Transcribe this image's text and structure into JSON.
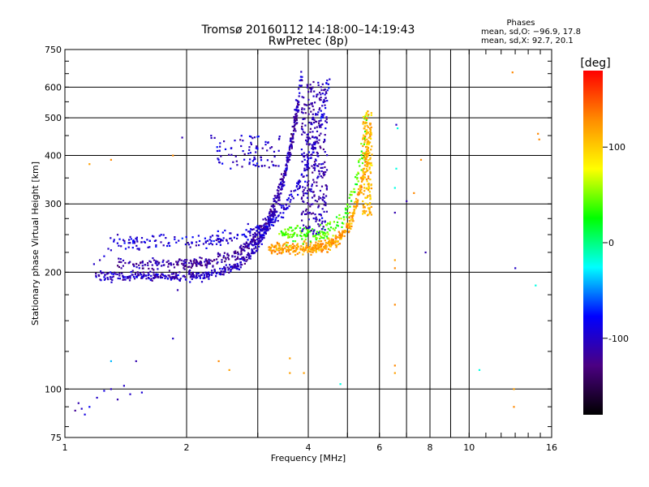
{
  "chart_data": {
    "type": "scatter",
    "title": "Tromsø 20160112 14:18:00–14:19:43",
    "subtitle": "RwPretec (8p)",
    "xlabel": "Frequency [MHz]",
    "ylabel": "Stationary phase Virtual Height [km]",
    "x_scale": "log",
    "y_scale": "log",
    "xlim": [
      1,
      16
    ],
    "ylim": [
      75,
      750
    ],
    "x_ticks": [
      1,
      2,
      4,
      6,
      8,
      10,
      16
    ],
    "y_ticks": [
      75,
      100,
      200,
      300,
      400,
      500,
      600,
      750
    ],
    "grid": true,
    "stats": {
      "heading": "Phases",
      "line_o": "mean, sd,O: −96.9, 17.8",
      "line_x": "mean, sd,X:  92.7, 20.1"
    },
    "colorbar": {
      "label": "[deg]",
      "range": [
        -180,
        180
      ],
      "ticks": [
        100,
        0,
        -100
      ],
      "colors": [
        "#000000",
        "#4b0082",
        "#0000ff",
        "#00ffff",
        "#00ff00",
        "#ffff00",
        "#ff8c00",
        "#ff0000"
      ]
    },
    "points": [
      [
        1.1,
        89,
        -100
      ],
      [
        1.12,
        86,
        -90
      ],
      [
        1.08,
        92,
        -110
      ],
      [
        1.15,
        90,
        -80
      ],
      [
        1.06,
        88,
        -120
      ],
      [
        1.2,
        95,
        -100
      ],
      [
        1.25,
        99,
        -90
      ],
      [
        1.35,
        94,
        -110
      ],
      [
        1.45,
        97,
        -100
      ],
      [
        1.55,
        98,
        -95
      ],
      [
        1.3,
        100,
        -105
      ],
      [
        1.4,
        102,
        -100
      ],
      [
        1.3,
        118,
        -40
      ],
      [
        1.5,
        118,
        -110
      ],
      [
        1.85,
        135,
        -100
      ],
      [
        1.9,
        180,
        -110
      ],
      [
        1.28,
        230,
        -100
      ],
      [
        1.32,
        240,
        -90
      ],
      [
        1.35,
        250,
        -110
      ],
      [
        1.18,
        210,
        -100
      ],
      [
        1.22,
        215,
        -110
      ],
      [
        1.25,
        220,
        -90
      ],
      [
        1.3,
        228,
        -100
      ],
      [
        1.15,
        380,
        120
      ],
      [
        1.3,
        390,
        130
      ],
      [
        1.85,
        400,
        130
      ],
      [
        1.95,
        445,
        -110
      ],
      [
        2.3,
        450,
        -100
      ],
      [
        3.9,
        110,
        120
      ],
      [
        4.8,
        103,
        -20
      ],
      [
        6.55,
        110,
        120
      ],
      [
        6.55,
        115,
        130
      ],
      [
        6.55,
        165,
        130
      ],
      [
        6.55,
        215,
        120
      ],
      [
        6.55,
        205,
        130
      ],
      [
        6.55,
        285,
        -110
      ],
      [
        6.55,
        330,
        -20
      ],
      [
        6.6,
        370,
        -20
      ],
      [
        6.6,
        480,
        -100
      ],
      [
        6.65,
        470,
        -20
      ],
      [
        7.0,
        305,
        -110
      ],
      [
        7.3,
        320,
        130
      ],
      [
        7.6,
        390,
        130
      ],
      [
        7.8,
        225,
        -110
      ],
      [
        10.6,
        112,
        -20
      ],
      [
        12.8,
        655,
        130
      ],
      [
        12.9,
        100,
        120
      ],
      [
        12.9,
        90,
        130
      ],
      [
        13.0,
        205,
        -100
      ],
      [
        14.6,
        185,
        -20
      ],
      [
        14.8,
        455,
        130
      ],
      [
        14.9,
        440,
        130
      ],
      [
        2.4,
        118,
        130
      ],
      [
        2.55,
        112,
        120
      ],
      [
        3.6,
        120,
        120
      ],
      [
        3.6,
        110,
        120
      ]
    ],
    "traces": [
      {
        "kind": "o_ridge_low",
        "fmin": 1.18,
        "fmax": 3.85,
        "hmin": 195,
        "hmax": 650,
        "steep": 2.2,
        "phase": -105,
        "spread": 0.045,
        "count": 520
      },
      {
        "kind": "o_ridge_mid",
        "fmin": 1.35,
        "fmax": 3.8,
        "hmin": 210,
        "hmax": 560,
        "steep": 2.0,
        "phase": -115,
        "spread": 0.05,
        "count": 360
      },
      {
        "kind": "x_band_high",
        "fmin": 1.3,
        "fmax": 4.5,
        "hmin": 240,
        "hmax": 620,
        "steep": 1.9,
        "phase": -95,
        "spread": 0.06,
        "count": 300
      },
      {
        "kind": "x_cusp",
        "fmin": 3.2,
        "fmax": 5.7,
        "hmin": 230,
        "hmax": 480,
        "steep": 2.4,
        "phase": 120,
        "spread": 0.05,
        "count": 420
      },
      {
        "kind": "x_cusp_mix",
        "fmin": 3.4,
        "fmax": 5.6,
        "hmin": 250,
        "hmax": 520,
        "steep": 2.2,
        "phase": 40,
        "spread": 0.07,
        "count": 180
      },
      {
        "kind": "vertical_4",
        "fmin": 3.85,
        "fmax": 4.45,
        "hmin": 250,
        "hmax": 620,
        "steep": 0.0,
        "phase": -110,
        "spread": 0.03,
        "count": 320
      },
      {
        "kind": "vertical_5",
        "fmin": 5.45,
        "fmax": 5.75,
        "hmin": 280,
        "hmax": 520,
        "steep": 0.0,
        "phase": 110,
        "spread": 0.02,
        "count": 160
      },
      {
        "kind": "f1_branch",
        "fmin": 2.3,
        "fmax": 3.4,
        "hmin": 370,
        "hmax": 450,
        "steep": 0.0,
        "phase": -100,
        "spread": 0.02,
        "count": 90
      }
    ]
  }
}
